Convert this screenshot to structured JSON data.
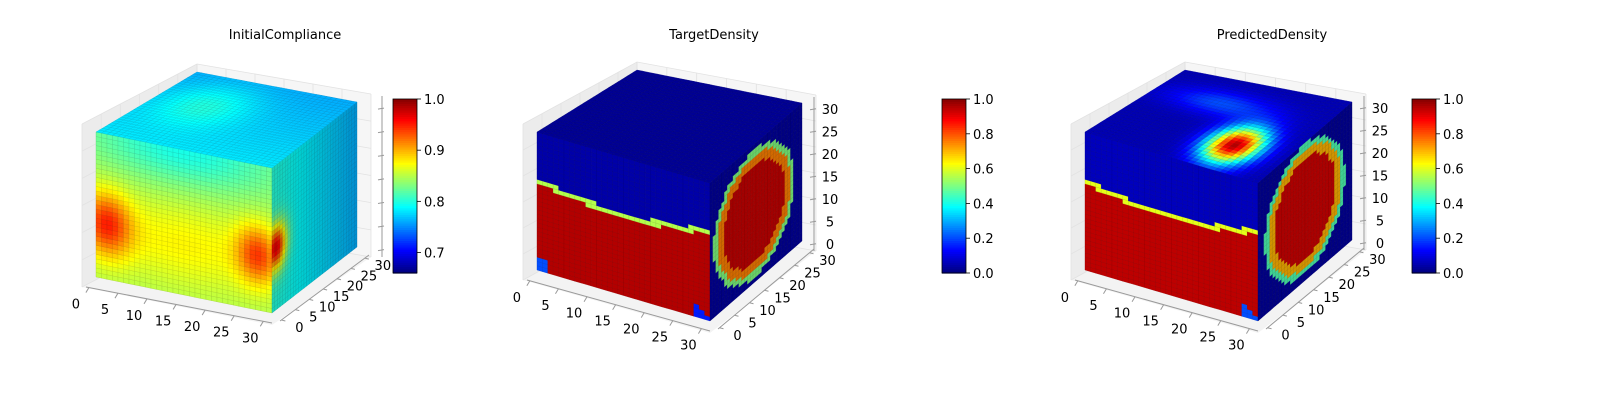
{
  "chart_data": [
    {
      "type": "3d-voxel",
      "title": "InitialCompliance",
      "colormap": "jet",
      "x_ticks": [
        "0",
        "5",
        "10",
        "15",
        "20",
        "25",
        "30"
      ],
      "y_ticks": [
        "0",
        "5",
        "10",
        "15",
        "20",
        "25",
        "30"
      ],
      "z_ticks": [],
      "colorbar": {
        "min": 0.66,
        "max": 1.0,
        "ticks": [
          "0.7",
          "0.8",
          "0.9",
          "1.0"
        ],
        "tick_values": [
          0.7,
          0.8,
          0.9,
          1.0
        ]
      },
      "field": "compliance"
    },
    {
      "type": "3d-voxel",
      "title": "TargetDensity",
      "colormap": "jet",
      "x_ticks": [
        "0",
        "5",
        "10",
        "15",
        "20",
        "25",
        "30"
      ],
      "y_ticks": [
        "0",
        "5",
        "10",
        "15",
        "20",
        "25",
        "30"
      ],
      "z_ticks": [
        "0",
        "5",
        "10",
        "15",
        "20",
        "25",
        "30"
      ],
      "colorbar": {
        "min": 0.0,
        "max": 1.0,
        "ticks": [
          "0.0",
          "0.2",
          "0.4",
          "0.6",
          "0.8",
          "1.0"
        ],
        "tick_values": [
          0,
          0.2,
          0.4,
          0.6,
          0.8,
          1.0
        ]
      },
      "field": "target"
    },
    {
      "type": "3d-voxel",
      "title": "PredictedDensity",
      "colormap": "jet",
      "x_ticks": [
        "0",
        "5",
        "10",
        "15",
        "20",
        "25",
        "30"
      ],
      "y_ticks": [
        "0",
        "5",
        "10",
        "15",
        "20",
        "25",
        "30"
      ],
      "z_ticks": [
        "0",
        "5",
        "10",
        "15",
        "20",
        "25",
        "30"
      ],
      "colorbar": {
        "min": 0.0,
        "max": 1.0,
        "ticks": [
          "0.0",
          "0.2",
          "0.4",
          "0.6",
          "0.8",
          "1.0"
        ],
        "tick_values": [
          0,
          0.2,
          0.4,
          0.6,
          0.8,
          1.0
        ]
      },
      "field": "predicted"
    }
  ]
}
